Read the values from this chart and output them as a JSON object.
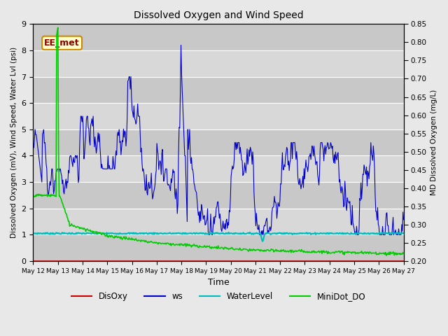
{
  "title": "Dissolved Oxygen and Wind Speed",
  "ylabel_left": "Dissolved Oxygen (mV), Wind Speed, Water Lvl (psi)",
  "ylabel_right": "MD Dissolved Oxygen (mg/L)",
  "xlabel": "Time",
  "ylim_left": [
    0.0,
    9.0
  ],
  "ylim_right": [
    0.2,
    0.85
  ],
  "annotation_text": "EE_met",
  "background_color": "#e8e8e8",
  "plot_bg_color": "#d4d4d4",
  "legend_entries": [
    "DisOxy",
    "ws",
    "WaterLevel",
    "MiniDot_DO"
  ],
  "legend_colors": [
    "#cc0000",
    "#0000cc",
    "#00bbbb",
    "#00cc00"
  ],
  "line_colors": {
    "DisOxy": "#cc0000",
    "ws": "#0000cc",
    "WaterLevel": "#00bbbb",
    "MiniDot_DO": "#00cc00"
  },
  "x_tick_labels": [
    "May 12",
    "May 13",
    "May 14",
    "May 15",
    "May 16",
    "May 17",
    "May 18",
    "May 19",
    "May 20",
    "May 21",
    "May 22",
    "May 23",
    "May 24",
    "May 25",
    "May 26",
    "May 27"
  ],
  "yticks_left": [
    0.0,
    1.0,
    2.0,
    3.0,
    4.0,
    5.0,
    6.0,
    7.0,
    8.0,
    9.0
  ],
  "yticks_right": [
    0.2,
    0.25,
    0.3,
    0.35,
    0.4,
    0.45,
    0.5,
    0.55,
    0.6,
    0.65,
    0.7,
    0.75,
    0.8,
    0.85
  ],
  "grid_color": "#ffffff",
  "figsize": [
    6.4,
    4.8
  ],
  "dpi": 100
}
